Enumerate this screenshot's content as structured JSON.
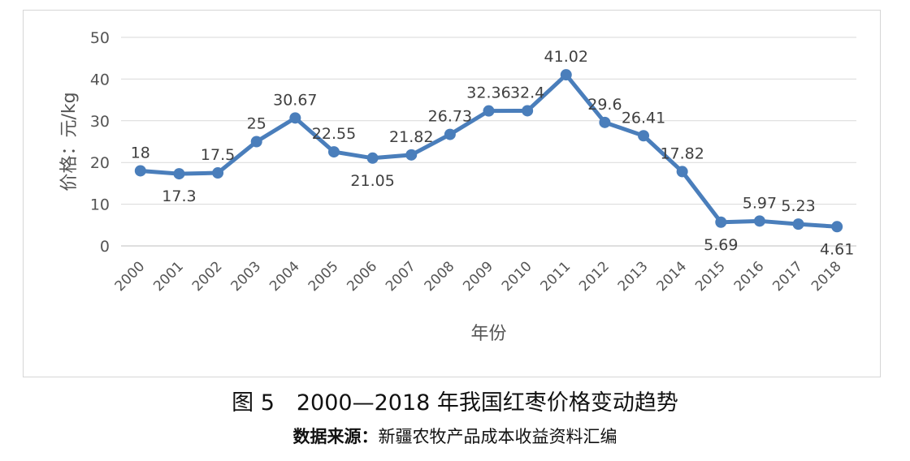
{
  "chart_data": {
    "type": "line",
    "ylabel": "价格：元/kg",
    "xlabel": "年份",
    "ylim": [
      0,
      50
    ],
    "yticks": [
      0,
      10,
      20,
      30,
      40,
      50
    ],
    "grid": true,
    "categories": [
      "2000",
      "2001",
      "2002",
      "2003",
      "2004",
      "2005",
      "2006",
      "2007",
      "2008",
      "2009",
      "2010",
      "2011",
      "2012",
      "2013",
      "2014",
      "2015",
      "2016",
      "2017",
      "2018"
    ],
    "series": [
      {
        "values": [
          18,
          17.3,
          17.5,
          25,
          30.67,
          22.55,
          21.05,
          21.82,
          26.73,
          32.36,
          32.4,
          41.02,
          29.6,
          26.41,
          17.82,
          5.69,
          5.97,
          5.23,
          4.61
        ],
        "color": "#4a7ebb"
      }
    ]
  },
  "caption": {
    "title": "图 5　2000—2018 年我国红枣价格变动趋势",
    "source_label": "数据来源：",
    "source_text": "新疆农牧产品成本收益资料汇编"
  }
}
